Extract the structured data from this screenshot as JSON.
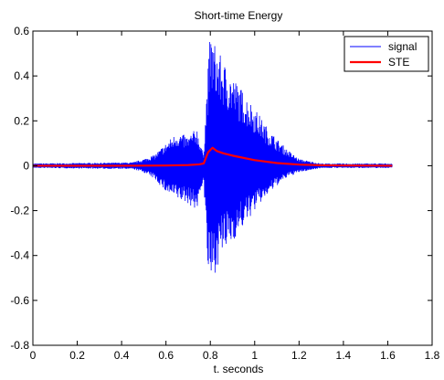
{
  "chart_data": {
    "type": "line",
    "title": "Short-time Energy",
    "xlabel": "t. seconds",
    "ylabel": "",
    "xlim": [
      0,
      1.8
    ],
    "ylim": [
      -0.8,
      0.6
    ],
    "x_ticks": [
      0,
      0.2,
      0.4,
      0.6,
      0.8,
      1,
      1.2,
      1.4,
      1.6,
      1.8
    ],
    "y_ticks": [
      -0.8,
      -0.6,
      -0.4,
      -0.2,
      0,
      0.2,
      0.4,
      0.6
    ],
    "x_tick_labels": [
      "0",
      "0.2",
      "0.4",
      "0.6",
      "0.8",
      "1",
      "1.2",
      "1.4",
      "1.6",
      "1.8"
    ],
    "y_tick_labels": [
      "-0.8",
      "-0.6",
      "-0.4",
      "-0.2",
      "0",
      "0.2",
      "0.4",
      "0.6"
    ],
    "grid": false,
    "legend_position": "top-right",
    "colors": {
      "signal": "#0000ff",
      "STE": "#ff0000",
      "axes": "#000000",
      "background": "#ffffff"
    },
    "series": [
      {
        "name": "signal",
        "kind": "oscillating-envelope",
        "x": [
          0,
          0.45,
          0.5,
          0.55,
          0.6,
          0.65,
          0.7,
          0.74,
          0.76,
          0.77,
          0.78,
          0.79,
          0.8,
          0.82,
          0.85,
          0.9,
          0.95,
          1.0,
          1.05,
          1.1,
          1.15,
          1.2,
          1.25,
          1.3,
          1.4,
          1.5,
          1.62
        ],
        "upper": [
          0.01,
          0.015,
          0.03,
          0.05,
          0.1,
          0.15,
          0.13,
          0.17,
          0.08,
          0.06,
          0.26,
          0.45,
          0.59,
          0.55,
          0.48,
          0.4,
          0.33,
          0.26,
          0.18,
          0.12,
          0.07,
          0.03,
          0.02,
          0.01,
          0.01,
          0.01,
          0.01
        ],
        "lower": [
          -0.01,
          -0.015,
          -0.03,
          -0.06,
          -0.12,
          -0.15,
          -0.17,
          -0.2,
          -0.1,
          -0.06,
          -0.3,
          -0.48,
          -0.55,
          -0.48,
          -0.4,
          -0.34,
          -0.27,
          -0.2,
          -0.14,
          -0.09,
          -0.05,
          -0.03,
          -0.02,
          -0.01,
          -0.01,
          -0.01,
          -0.01
        ]
      },
      {
        "name": "STE",
        "x": [
          0,
          0.4,
          0.6,
          0.7,
          0.75,
          0.77,
          0.78,
          0.79,
          0.8,
          0.81,
          0.83,
          0.86,
          0.9,
          1.0,
          1.1,
          1.2,
          1.3,
          1.4,
          1.62
        ],
        "values": [
          0,
          0,
          0.001,
          0.003,
          0.006,
          0.01,
          0.035,
          0.06,
          0.07,
          0.08,
          0.065,
          0.055,
          0.045,
          0.025,
          0.012,
          0.005,
          0.002,
          0.001,
          0
        ]
      }
    ]
  }
}
